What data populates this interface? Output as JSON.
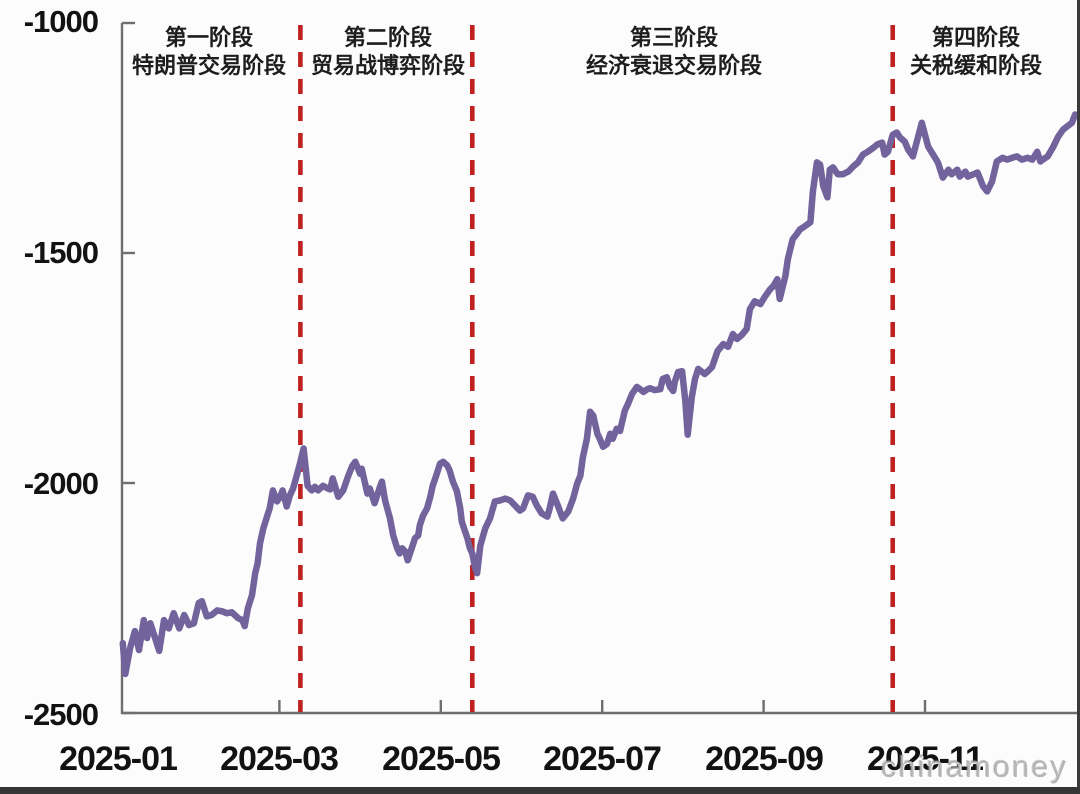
{
  "page": {
    "watermark": "chinamoney"
  },
  "chart_data": {
    "type": "line",
    "grid": false,
    "legend": "none",
    "x_axis": {
      "tick_labels": [
        "2025-01",
        "2025-03",
        "2025-05",
        "2025-07",
        "2025-09",
        "2025-11"
      ],
      "tick_month_offsets": [
        0,
        2,
        4,
        6,
        8,
        10
      ],
      "unit": "months since 2025-01"
    },
    "y_axis": {
      "tick_labels": [
        "-1000",
        "-1500",
        "-2000",
        "-2500"
      ],
      "tick_values": [
        -1000,
        -1500,
        -2000,
        -2500
      ],
      "ylim": [
        -2500,
        -1000
      ]
    },
    "phases": [
      {
        "title": "第一阶段",
        "subtitle": "特朗普交易阶段"
      },
      {
        "title": "第二阶段",
        "subtitle": "贸易战博弈阶段"
      },
      {
        "title": "第三阶段",
        "subtitle": "经济衰退交易阶段"
      },
      {
        "title": "第四阶段",
        "subtitle": "关税缓和阶段"
      }
    ],
    "phase_divider_month_offsets": [
      2.26,
      4.39,
      9.6
    ],
    "divider_color": "#bf2121",
    "series": [
      {
        "color": "#72639d",
        "points": [
          [
            0.06,
            -2348
          ],
          [
            0.09,
            -2415
          ],
          [
            0.15,
            -2359
          ],
          [
            0.21,
            -2322
          ],
          [
            0.26,
            -2363
          ],
          [
            0.32,
            -2298
          ],
          [
            0.36,
            -2337
          ],
          [
            0.4,
            -2305
          ],
          [
            0.46,
            -2337
          ],
          [
            0.51,
            -2365
          ],
          [
            0.57,
            -2298
          ],
          [
            0.63,
            -2316
          ],
          [
            0.69,
            -2283
          ],
          [
            0.76,
            -2316
          ],
          [
            0.82,
            -2287
          ],
          [
            0.88,
            -2309
          ],
          [
            0.94,
            -2305
          ],
          [
            1.0,
            -2261
          ],
          [
            1.04,
            -2257
          ],
          [
            1.1,
            -2290
          ],
          [
            1.16,
            -2287
          ],
          [
            1.23,
            -2277
          ],
          [
            1.29,
            -2279
          ],
          [
            1.35,
            -2283
          ],
          [
            1.41,
            -2281
          ],
          [
            1.49,
            -2294
          ],
          [
            1.54,
            -2298
          ],
          [
            1.57,
            -2311
          ],
          [
            1.61,
            -2272
          ],
          [
            1.66,
            -2244
          ],
          [
            1.7,
            -2196
          ],
          [
            1.73,
            -2175
          ],
          [
            1.76,
            -2131
          ],
          [
            1.8,
            -2099
          ],
          [
            1.85,
            -2071
          ],
          [
            1.88,
            -2055
          ],
          [
            1.92,
            -2016
          ],
          [
            1.97,
            -2040
          ],
          [
            2.01,
            -2030
          ],
          [
            2.04,
            -2016
          ],
          [
            2.09,
            -2051
          ],
          [
            2.13,
            -2027
          ],
          [
            2.17,
            -2012
          ],
          [
            2.22,
            -1980
          ],
          [
            2.26,
            -1954
          ],
          [
            2.3,
            -1925
          ],
          [
            2.35,
            -2006
          ],
          [
            2.4,
            -2016
          ],
          [
            2.44,
            -2008
          ],
          [
            2.48,
            -2016
          ],
          [
            2.54,
            -2006
          ],
          [
            2.6,
            -2012
          ],
          [
            2.63,
            -2014
          ],
          [
            2.66,
            -1990
          ],
          [
            2.73,
            -2030
          ],
          [
            2.79,
            -2016
          ],
          [
            2.85,
            -1986
          ],
          [
            2.9,
            -1964
          ],
          [
            2.94,
            -1954
          ],
          [
            3.0,
            -1980
          ],
          [
            3.02,
            -1969
          ],
          [
            3.09,
            -2023
          ],
          [
            3.12,
            -2012
          ],
          [
            3.18,
            -2044
          ],
          [
            3.25,
            -2006
          ],
          [
            3.27,
            -1997
          ],
          [
            3.31,
            -2038
          ],
          [
            3.37,
            -2077
          ],
          [
            3.41,
            -2114
          ],
          [
            3.46,
            -2142
          ],
          [
            3.49,
            -2153
          ],
          [
            3.52,
            -2142
          ],
          [
            3.56,
            -2149
          ],
          [
            3.59,
            -2168
          ],
          [
            3.64,
            -2142
          ],
          [
            3.68,
            -2120
          ],
          [
            3.72,
            -2114
          ],
          [
            3.74,
            -2092
          ],
          [
            3.78,
            -2071
          ],
          [
            3.83,
            -2055
          ],
          [
            3.87,
            -2030
          ],
          [
            3.9,
            -2006
          ],
          [
            3.95,
            -1980
          ],
          [
            3.99,
            -1958
          ],
          [
            4.03,
            -1954
          ],
          [
            4.08,
            -1962
          ],
          [
            4.11,
            -1973
          ],
          [
            4.15,
            -1997
          ],
          [
            4.2,
            -2018
          ],
          [
            4.24,
            -2055
          ],
          [
            4.26,
            -2084
          ],
          [
            4.3,
            -2105
          ],
          [
            4.33,
            -2120
          ],
          [
            4.36,
            -2142
          ],
          [
            4.39,
            -2153
          ],
          [
            4.42,
            -2181
          ],
          [
            4.45,
            -2196
          ],
          [
            4.49,
            -2136
          ],
          [
            4.55,
            -2099
          ],
          [
            4.61,
            -2077
          ],
          [
            4.67,
            -2040
          ],
          [
            4.73,
            -2038
          ],
          [
            4.8,
            -2034
          ],
          [
            4.86,
            -2038
          ],
          [
            4.92,
            -2049
          ],
          [
            4.98,
            -2060
          ],
          [
            5.02,
            -2055
          ],
          [
            5.08,
            -2027
          ],
          [
            5.14,
            -2030
          ],
          [
            5.19,
            -2049
          ],
          [
            5.25,
            -2066
          ],
          [
            5.32,
            -2073
          ],
          [
            5.35,
            -2055
          ],
          [
            5.39,
            -2023
          ],
          [
            5.45,
            -2049
          ],
          [
            5.51,
            -2077
          ],
          [
            5.58,
            -2062
          ],
          [
            5.64,
            -2034
          ],
          [
            5.69,
            -2001
          ],
          [
            5.73,
            -1984
          ],
          [
            5.76,
            -1945
          ],
          [
            5.81,
            -1904
          ],
          [
            5.85,
            -1845
          ],
          [
            5.89,
            -1854
          ],
          [
            5.94,
            -1893
          ],
          [
            5.97,
            -1904
          ],
          [
            6.01,
            -1921
          ],
          [
            6.06,
            -1915
          ],
          [
            6.1,
            -1893
          ],
          [
            6.13,
            -1904
          ],
          [
            6.18,
            -1882
          ],
          [
            6.22,
            -1887
          ],
          [
            6.28,
            -1843
          ],
          [
            6.32,
            -1828
          ],
          [
            6.37,
            -1806
          ],
          [
            6.43,
            -1791
          ],
          [
            6.47,
            -1796
          ],
          [
            6.51,
            -1802
          ],
          [
            6.56,
            -1796
          ],
          [
            6.59,
            -1794
          ],
          [
            6.65,
            -1798
          ],
          [
            6.72,
            -1796
          ],
          [
            6.75,
            -1774
          ],
          [
            6.8,
            -1770
          ],
          [
            6.84,
            -1791
          ],
          [
            6.88,
            -1800
          ],
          [
            6.9,
            -1780
          ],
          [
            6.94,
            -1759
          ],
          [
            6.99,
            -1757
          ],
          [
            7.03,
            -1821
          ],
          [
            7.06,
            -1895
          ],
          [
            7.11,
            -1813
          ],
          [
            7.15,
            -1774
          ],
          [
            7.19,
            -1752
          ],
          [
            7.24,
            -1759
          ],
          [
            7.27,
            -1763
          ],
          [
            7.31,
            -1757
          ],
          [
            7.36,
            -1748
          ],
          [
            7.43,
            -1713
          ],
          [
            7.5,
            -1698
          ],
          [
            7.56,
            -1704
          ],
          [
            7.62,
            -1676
          ],
          [
            7.67,
            -1687
          ],
          [
            7.73,
            -1678
          ],
          [
            7.79,
            -1665
          ],
          [
            7.83,
            -1622
          ],
          [
            7.89,
            -1605
          ],
          [
            7.96,
            -1611
          ],
          [
            8.02,
            -1594
          ],
          [
            8.08,
            -1579
          ],
          [
            8.12,
            -1572
          ],
          [
            8.17,
            -1557
          ],
          [
            8.2,
            -1600
          ],
          [
            8.27,
            -1550
          ],
          [
            8.3,
            -1514
          ],
          [
            8.36,
            -1470
          ],
          [
            8.41,
            -1459
          ],
          [
            8.45,
            -1449
          ],
          [
            8.51,
            -1442
          ],
          [
            8.58,
            -1433
          ],
          [
            8.61,
            -1368
          ],
          [
            8.66,
            -1303
          ],
          [
            8.7,
            -1308
          ],
          [
            8.74,
            -1355
          ],
          [
            8.79,
            -1379
          ],
          [
            8.82,
            -1319
          ],
          [
            8.86,
            -1314
          ],
          [
            8.92,
            -1329
          ],
          [
            8.98,
            -1329
          ],
          [
            9.05,
            -1323
          ],
          [
            9.11,
            -1312
          ],
          [
            9.17,
            -1303
          ],
          [
            9.23,
            -1286
          ],
          [
            9.29,
            -1280
          ],
          [
            9.36,
            -1271
          ],
          [
            9.41,
            -1264
          ],
          [
            9.47,
            -1260
          ],
          [
            9.5,
            -1286
          ],
          [
            9.54,
            -1280
          ],
          [
            9.6,
            -1243
          ],
          [
            9.65,
            -1238
          ],
          [
            9.69,
            -1249
          ],
          [
            9.75,
            -1258
          ],
          [
            9.79,
            -1275
          ],
          [
            9.85,
            -1290
          ],
          [
            9.96,
            -1217
          ],
          [
            10.0,
            -1243
          ],
          [
            10.04,
            -1269
          ],
          [
            10.1,
            -1286
          ],
          [
            10.16,
            -1303
          ],
          [
            10.22,
            -1336
          ],
          [
            10.29,
            -1319
          ],
          [
            10.33,
            -1329
          ],
          [
            10.4,
            -1319
          ],
          [
            10.43,
            -1334
          ],
          [
            10.5,
            -1323
          ],
          [
            10.53,
            -1334
          ],
          [
            10.6,
            -1329
          ],
          [
            10.65,
            -1325
          ],
          [
            10.72,
            -1355
          ],
          [
            10.77,
            -1366
          ],
          [
            10.83,
            -1345
          ],
          [
            10.89,
            -1301
          ],
          [
            10.96,
            -1293
          ],
          [
            11.02,
            -1297
          ],
          [
            11.08,
            -1293
          ],
          [
            11.14,
            -1290
          ],
          [
            11.2,
            -1297
          ],
          [
            11.27,
            -1293
          ],
          [
            11.33,
            -1297
          ],
          [
            11.39,
            -1280
          ],
          [
            11.43,
            -1301
          ],
          [
            11.46,
            -1297
          ],
          [
            11.52,
            -1290
          ],
          [
            11.59,
            -1269
          ],
          [
            11.65,
            -1247
          ],
          [
            11.71,
            -1232
          ],
          [
            11.76,
            -1225
          ],
          [
            11.82,
            -1217
          ],
          [
            11.86,
            -1199
          ]
        ]
      }
    ]
  }
}
